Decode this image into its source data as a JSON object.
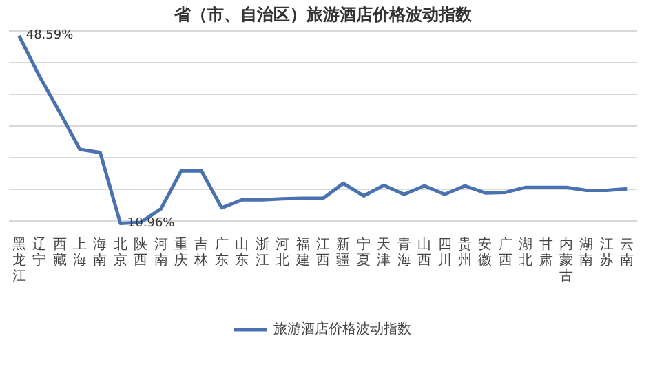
{
  "chart_data": {
    "type": "line",
    "title": "省（市、自治区）旅游酒店价格波动指数",
    "categories": [
      "黑龙江",
      "辽宁",
      "西藏",
      "上海",
      "海南",
      "北京",
      "陕西",
      "河南",
      "重庆",
      "吉林",
      "广东",
      "山东",
      "浙江",
      "河北",
      "福建",
      "江西",
      "新疆",
      "宁夏",
      "天津",
      "青海",
      "山西",
      "四川",
      "贵州",
      "安徽",
      "广西",
      "湖北",
      "甘肃",
      "内蒙古",
      "湖南",
      "江苏",
      "云南"
    ],
    "series": [
      {
        "name": "旅游酒店价格波动指数",
        "color": "#4a72b0",
        "values": [
          48.59,
          40.5,
          33.3,
          25.8,
          25.2,
          10.96,
          11.2,
          13.9,
          21.5,
          21.5,
          14.1,
          15.7,
          15.7,
          15.9,
          16.0,
          16.0,
          19.0,
          16.5,
          18.6,
          16.8,
          18.5,
          16.8,
          18.5,
          17.1,
          17.2,
          18.2,
          18.2,
          18.2,
          17.6,
          17.6,
          17.9
        ],
        "value_labels": [
          "48.59%",
          null,
          null,
          null,
          null,
          "10.96%",
          null,
          null,
          null,
          null,
          null,
          null,
          null,
          null,
          null,
          null,
          null,
          null,
          null,
          null,
          null,
          null,
          null,
          null,
          null,
          null,
          null,
          null,
          null,
          null,
          null
        ]
      }
    ],
    "yticks": [
      {
        "value": 11.5,
        "label": null
      },
      {
        "value": 17.8,
        "label": null
      },
      {
        "value": 24.2,
        "label": null
      },
      {
        "value": 30.5,
        "label": null
      },
      {
        "value": 36.8,
        "label": null
      },
      {
        "value": 43.2,
        "label": null
      },
      {
        "value": 49.5,
        "label": null
      }
    ],
    "tick_labels": "x",
    "grid": "y",
    "legend": "bottom",
    "marker": "none",
    "line_style": "solid"
  }
}
